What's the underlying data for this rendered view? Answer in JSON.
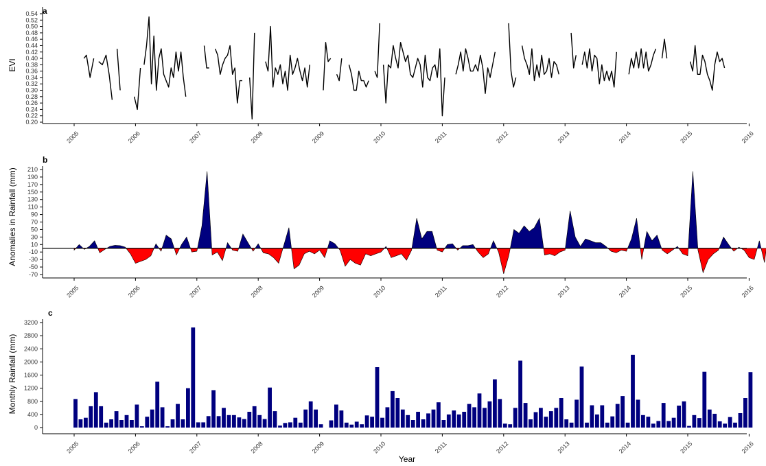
{
  "figure": {
    "xlabel": "Year"
  },
  "chart_data": [
    {
      "panel": "a",
      "type": "line",
      "ylabel": "EVI",
      "ylim": [
        0.2,
        0.54
      ],
      "yticks": [
        "0.20",
        "0.22",
        "0.24",
        "0.26",
        "0.28",
        "0.30",
        "0.32",
        "0.34",
        "0.36",
        "0.38",
        "0.40",
        "0.42",
        "0.44",
        "0.46",
        "0.48",
        "0.50",
        "0.52",
        "0.54"
      ],
      "xticks": [
        "2005",
        "2006",
        "2007",
        "2008",
        "2009",
        "2010",
        "2011",
        "2012",
        "2013",
        "2014",
        "2015",
        "2016"
      ],
      "grid": false,
      "segments": [
        [
          [
            2005.16,
            0.4
          ],
          [
            2005.2,
            0.41
          ],
          [
            2005.26,
            0.34
          ],
          [
            2005.32,
            0.4
          ]
        ],
        [
          [
            2005.4,
            0.39
          ],
          [
            2005.46,
            0.38
          ],
          [
            2005.52,
            0.41
          ],
          [
            2005.57,
            0.35
          ],
          [
            2005.62,
            0.27
          ]
        ],
        [
          [
            2005.7,
            0.43
          ],
          [
            2005.75,
            0.3
          ]
        ],
        [
          [
            2005.98,
            0.28
          ],
          [
            2006.03,
            0.24
          ],
          [
            2006.08,
            0.37
          ]
        ],
        [
          [
            2006.14,
            0.38
          ],
          [
            2006.18,
            0.44
          ],
          [
            2006.22,
            0.53
          ],
          [
            2006.26,
            0.32
          ],
          [
            2006.3,
            0.47
          ],
          [
            2006.34,
            0.3
          ],
          [
            2006.38,
            0.4
          ],
          [
            2006.42,
            0.43
          ],
          [
            2006.46,
            0.35
          ],
          [
            2006.5,
            0.33
          ],
          [
            2006.54,
            0.31
          ],
          [
            2006.58,
            0.37
          ],
          [
            2006.62,
            0.34
          ],
          [
            2006.66,
            0.42
          ],
          [
            2006.7,
            0.36
          ],
          [
            2006.74,
            0.42
          ],
          [
            2006.78,
            0.34
          ],
          [
            2006.82,
            0.28
          ]
        ],
        [
          [
            2007.12,
            0.44
          ],
          [
            2007.16,
            0.37
          ],
          [
            2007.2,
            0.37
          ]
        ],
        [
          [
            2007.3,
            0.43
          ],
          [
            2007.34,
            0.41
          ],
          [
            2007.38,
            0.35
          ],
          [
            2007.42,
            0.38
          ],
          [
            2007.46,
            0.4
          ],
          [
            2007.5,
            0.41
          ],
          [
            2007.54,
            0.44
          ],
          [
            2007.58,
            0.35
          ],
          [
            2007.62,
            0.37
          ],
          [
            2007.66,
            0.26
          ],
          [
            2007.7,
            0.33
          ],
          [
            2007.74,
            0.33
          ]
        ],
        [
          [
            2007.86,
            0.34
          ],
          [
            2007.9,
            0.21
          ],
          [
            2007.94,
            0.48
          ]
        ],
        [
          [
            2008.12,
            0.39
          ],
          [
            2008.16,
            0.36
          ],
          [
            2008.2,
            0.5
          ],
          [
            2008.24,
            0.31
          ],
          [
            2008.28,
            0.37
          ],
          [
            2008.32,
            0.35
          ],
          [
            2008.36,
            0.38
          ],
          [
            2008.4,
            0.32
          ],
          [
            2008.44,
            0.36
          ],
          [
            2008.48,
            0.3
          ],
          [
            2008.52,
            0.41
          ],
          [
            2008.56,
            0.35
          ],
          [
            2008.6,
            0.37
          ],
          [
            2008.64,
            0.4
          ],
          [
            2008.68,
            0.36
          ],
          [
            2008.72,
            0.33
          ],
          [
            2008.76,
            0.37
          ],
          [
            2008.8,
            0.31
          ],
          [
            2008.84,
            0.38
          ]
        ],
        [
          [
            2009.06,
            0.3
          ],
          [
            2009.1,
            0.45
          ],
          [
            2009.14,
            0.39
          ],
          [
            2009.18,
            0.4
          ]
        ],
        [
          [
            2009.28,
            0.35
          ],
          [
            2009.32,
            0.33
          ],
          [
            2009.36,
            0.4
          ]
        ],
        [
          [
            2009.48,
            0.38
          ],
          [
            2009.52,
            0.35
          ],
          [
            2009.56,
            0.3
          ],
          [
            2009.6,
            0.3
          ],
          [
            2009.64,
            0.36
          ],
          [
            2009.68,
            0.33
          ],
          [
            2009.72,
            0.33
          ],
          [
            2009.76,
            0.31
          ],
          [
            2009.8,
            0.33
          ]
        ],
        [
          [
            2009.9,
            0.36
          ],
          [
            2009.94,
            0.34
          ],
          [
            2009.98,
            0.51
          ]
        ],
        [
          [
            2010.04,
            0.38
          ],
          [
            2010.08,
            0.26
          ],
          [
            2010.12,
            0.38
          ],
          [
            2010.16,
            0.37
          ],
          [
            2010.2,
            0.44
          ],
          [
            2010.24,
            0.4
          ],
          [
            2010.28,
            0.37
          ],
          [
            2010.32,
            0.45
          ],
          [
            2010.36,
            0.42
          ],
          [
            2010.4,
            0.39
          ],
          [
            2010.44,
            0.41
          ],
          [
            2010.48,
            0.35
          ],
          [
            2010.52,
            0.34
          ],
          [
            2010.56,
            0.37
          ],
          [
            2010.6,
            0.4
          ],
          [
            2010.64,
            0.38
          ],
          [
            2010.68,
            0.31
          ],
          [
            2010.72,
            0.41
          ],
          [
            2010.76,
            0.34
          ],
          [
            2010.8,
            0.33
          ],
          [
            2010.84,
            0.37
          ],
          [
            2010.88,
            0.38
          ],
          [
            2010.92,
            0.34
          ],
          [
            2010.96,
            0.43
          ],
          [
            2011.0,
            0.22
          ],
          [
            2011.04,
            0.34
          ]
        ],
        [
          [
            2011.22,
            0.35
          ],
          [
            2011.26,
            0.38
          ],
          [
            2011.3,
            0.42
          ],
          [
            2011.34,
            0.36
          ],
          [
            2011.38,
            0.43
          ],
          [
            2011.42,
            0.4
          ],
          [
            2011.46,
            0.36
          ],
          [
            2011.5,
            0.36
          ],
          [
            2011.54,
            0.38
          ],
          [
            2011.58,
            0.36
          ],
          [
            2011.62,
            0.41
          ],
          [
            2011.66,
            0.37
          ],
          [
            2011.7,
            0.29
          ],
          [
            2011.74,
            0.37
          ],
          [
            2011.78,
            0.34
          ],
          [
            2011.82,
            0.38
          ],
          [
            2011.86,
            0.42
          ]
        ],
        [
          [
            2012.08,
            0.51
          ],
          [
            2012.12,
            0.36
          ],
          [
            2012.16,
            0.31
          ],
          [
            2012.2,
            0.34
          ]
        ],
        [
          [
            2012.3,
            0.44
          ],
          [
            2012.34,
            0.4
          ],
          [
            2012.38,
            0.38
          ],
          [
            2012.42,
            0.35
          ],
          [
            2012.46,
            0.43
          ],
          [
            2012.5,
            0.33
          ],
          [
            2012.54,
            0.38
          ],
          [
            2012.58,
            0.34
          ],
          [
            2012.62,
            0.41
          ],
          [
            2012.66,
            0.35
          ],
          [
            2012.7,
            0.36
          ],
          [
            2012.74,
            0.4
          ],
          [
            2012.78,
            0.34
          ],
          [
            2012.82,
            0.39
          ],
          [
            2012.86,
            0.38
          ],
          [
            2012.9,
            0.35
          ]
        ],
        [
          [
            2013.1,
            0.48
          ],
          [
            2013.14,
            0.37
          ],
          [
            2013.18,
            0.41
          ]
        ],
        [
          [
            2013.28,
            0.38
          ],
          [
            2013.32,
            0.42
          ],
          [
            2013.36,
            0.37
          ],
          [
            2013.4,
            0.43
          ],
          [
            2013.44,
            0.36
          ],
          [
            2013.48,
            0.41
          ],
          [
            2013.52,
            0.4
          ],
          [
            2013.56,
            0.32
          ],
          [
            2013.6,
            0.38
          ],
          [
            2013.64,
            0.33
          ],
          [
            2013.68,
            0.36
          ],
          [
            2013.72,
            0.33
          ],
          [
            2013.76,
            0.36
          ],
          [
            2013.8,
            0.31
          ],
          [
            2013.84,
            0.42
          ]
        ],
        [
          [
            2014.04,
            0.35
          ],
          [
            2014.08,
            0.4
          ],
          [
            2014.12,
            0.37
          ],
          [
            2014.16,
            0.42
          ],
          [
            2014.2,
            0.37
          ],
          [
            2014.24,
            0.43
          ],
          [
            2014.28,
            0.37
          ],
          [
            2014.32,
            0.42
          ],
          [
            2014.36,
            0.36
          ],
          [
            2014.4,
            0.38
          ],
          [
            2014.44,
            0.41
          ],
          [
            2014.48,
            0.43
          ]
        ],
        [
          [
            2014.58,
            0.4
          ],
          [
            2014.62,
            0.46
          ],
          [
            2014.66,
            0.4
          ]
        ],
        [
          [
            2015.04,
            0.39
          ],
          [
            2015.08,
            0.36
          ],
          [
            2015.12,
            0.44
          ],
          [
            2015.16,
            0.35
          ],
          [
            2015.2,
            0.35
          ],
          [
            2015.24,
            0.41
          ],
          [
            2015.28,
            0.39
          ],
          [
            2015.32,
            0.35
          ],
          [
            2015.36,
            0.33
          ],
          [
            2015.4,
            0.3
          ],
          [
            2015.44,
            0.38
          ],
          [
            2015.48,
            0.42
          ],
          [
            2015.52,
            0.39
          ],
          [
            2015.56,
            0.4
          ],
          [
            2015.6,
            0.37
          ]
        ]
      ]
    },
    {
      "panel": "b",
      "type": "area",
      "ylabel": "Anomalies in Rainfall (mm)",
      "ylim": [
        -75,
        215
      ],
      "yticks": [
        "-70",
        "-50",
        "-30",
        "-10",
        "10",
        "30",
        "50",
        "70",
        "90",
        "110",
        "130",
        "150",
        "170",
        "190",
        "210"
      ],
      "xticks": [
        "2005",
        "2006",
        "2007",
        "2008",
        "2009",
        "2010",
        "2011",
        "2012",
        "2013",
        "2014",
        "2015",
        "2016"
      ],
      "grid": false,
      "fill_positive": "#00007F",
      "fill_negative": "#FF0000",
      "x_start": 2005,
      "x_step_months": 1,
      "values": [
        -5,
        10,
        -3,
        5,
        20,
        -12,
        -3,
        5,
        8,
        7,
        3,
        -15,
        -40,
        -35,
        -30,
        -20,
        12,
        -8,
        35,
        25,
        -18,
        10,
        30,
        -10,
        -8,
        60,
        205,
        -18,
        -10,
        -33,
        15,
        -5,
        -8,
        38,
        15,
        -8,
        12,
        -12,
        -15,
        -25,
        -40,
        8,
        55,
        -55,
        -45,
        -15,
        -8,
        -15,
        -5,
        -25,
        20,
        12,
        -5,
        -48,
        -30,
        -40,
        -45,
        -15,
        -20,
        -15,
        -10,
        5,
        -25,
        -20,
        -15,
        -32,
        -5,
        80,
        25,
        45,
        45,
        -5,
        -10,
        10,
        12,
        -5,
        7,
        7,
        10,
        -10,
        -25,
        -15,
        20,
        -10,
        -68,
        -20,
        50,
        40,
        60,
        45,
        55,
        80,
        -18,
        -15,
        -20,
        -10,
        -5,
        100,
        30,
        5,
        25,
        20,
        15,
        15,
        5,
        -8,
        -12,
        -5,
        -8,
        25,
        80,
        -30,
        45,
        20,
        35,
        -5,
        -15,
        -5,
        5,
        -15,
        -20,
        205,
        -5,
        -65,
        -30,
        -15,
        -5,
        30,
        10,
        -8,
        3,
        -5,
        -25,
        -30,
        20,
        -38,
        65,
        15,
        20,
        -8,
        -12,
        -5,
        10,
        20,
        63
      ]
    },
    {
      "panel": "c",
      "type": "bar",
      "ylabel": "Monthly Rainfall (mm)",
      "ylim": [
        0,
        3200
      ],
      "yticks": [
        "0",
        "400",
        "800",
        "1200",
        "1600",
        "2000",
        "2400",
        "2800",
        "3200"
      ],
      "xticks": [
        "2005",
        "2006",
        "2007",
        "2008",
        "2009",
        "2010",
        "2011",
        "2012",
        "2013",
        "2014",
        "2015",
        "2016"
      ],
      "grid": false,
      "bar_color": "#00007F",
      "x_start": 2005,
      "x_step_months": 1,
      "values": [
        870,
        250,
        300,
        650,
        1080,
        650,
        150,
        250,
        500,
        230,
        380,
        230,
        700,
        40,
        330,
        550,
        1400,
        620,
        40,
        250,
        720,
        250,
        1200,
        3050,
        160,
        160,
        350,
        1140,
        350,
        600,
        380,
        380,
        310,
        260,
        480,
        650,
        380,
        260,
        1220,
        500,
        60,
        140,
        160,
        300,
        150,
        550,
        800,
        550,
        100,
        0,
        220,
        700,
        520,
        150,
        90,
        180,
        100,
        370,
        330,
        1840,
        300,
        620,
        1110,
        900,
        550,
        380,
        230,
        480,
        250,
        430,
        550,
        770,
        230,
        400,
        520,
        400,
        480,
        720,
        620,
        1040,
        600,
        800,
        1470,
        870,
        120,
        100,
        600,
        2040,
        750,
        250,
        470,
        600,
        330,
        500,
        600,
        900,
        250,
        150,
        850,
        1860,
        150,
        680,
        400,
        680,
        150,
        340,
        720,
        960,
        150,
        2220,
        850,
        380,
        330,
        120,
        200,
        750,
        200,
        300,
        670,
        800,
        50,
        380,
        290,
        1700,
        550,
        420,
        190,
        120,
        320,
        150,
        440,
        900,
        1690
      ]
    }
  ]
}
